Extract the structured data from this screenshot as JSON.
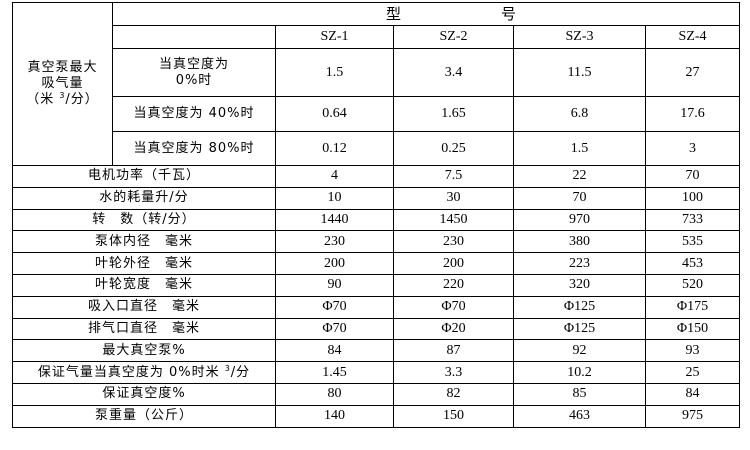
{
  "header": {
    "type_label": "型",
    "number_label": "号",
    "models": [
      "SZ-1",
      "SZ-2",
      "SZ-3",
      "SZ-4"
    ]
  },
  "suction": {
    "label_line1": "真空泵最大",
    "label_line2": "吸气量",
    "label_unit_pre": "（米 ",
    "label_unit_sup": "3",
    "label_unit_post": "/分）",
    "rows": [
      {
        "label_line1": "当真空度为",
        "label_line2": "0%时",
        "values": [
          "1.5",
          "3.4",
          "11.5",
          "27"
        ]
      },
      {
        "label": "当真空度为 40%时",
        "values": [
          "0.64",
          "1.65",
          "6.8",
          "17.6"
        ]
      },
      {
        "label": "当真空度为 80%时",
        "values": [
          "0.12",
          "0.25",
          "1.5",
          "3"
        ]
      }
    ]
  },
  "rows": [
    {
      "label": "电机功率（千瓦）",
      "values": [
        "4",
        "7.5",
        "22",
        "70"
      ]
    },
    {
      "label": "水的耗量升/分",
      "values": [
        "10",
        "30",
        "70",
        "100"
      ]
    },
    {
      "label": "转　数（转/分）",
      "values": [
        "1440",
        "1450",
        "970",
        "733"
      ]
    },
    {
      "label": "泵体内径　毫米",
      "values": [
        "230",
        "230",
        "380",
        "535"
      ]
    },
    {
      "label": "叶轮外径　毫米",
      "values": [
        "200",
        "200",
        "223",
        "453"
      ]
    },
    {
      "label": "叶轮宽度　毫米",
      "values": [
        "90",
        "220",
        "320",
        "520"
      ]
    },
    {
      "label": "吸入口直径　毫米",
      "values": [
        "Φ70",
        "Φ70",
        "Φ125",
        "Φ175"
      ]
    },
    {
      "label": "排气口直径　毫米",
      "values": [
        "Φ70",
        "Φ20",
        "Φ125",
        "Φ150"
      ]
    },
    {
      "label": "最大真空泵%",
      "values": [
        "84",
        "87",
        "92",
        "93"
      ]
    },
    {
      "label_pre": "保证气量当真空度为 0%时米 ",
      "label_sup": "3",
      "label_post": "/分",
      "values": [
        "1.45",
        "3.3",
        "10.2",
        "25"
      ]
    },
    {
      "label": "保证真空度%",
      "values": [
        "80",
        "82",
        "85",
        "84"
      ]
    },
    {
      "label": "泵重量（公斤）",
      "values": [
        "140",
        "150",
        "463",
        "975"
      ]
    }
  ]
}
